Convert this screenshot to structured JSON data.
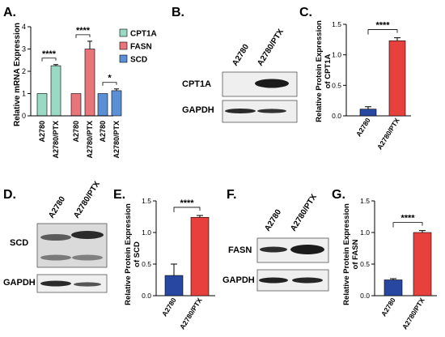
{
  "colors": {
    "green": "#9ad9c3",
    "red": "#e8757a",
    "blue": "#5b8fd6",
    "navy": "#2747a0",
    "bright_red": "#e8403c"
  },
  "panel_letters": [
    "A.",
    "B.",
    "C.",
    "D.",
    "E.",
    "F.",
    "G."
  ],
  "blots": {
    "B": {
      "lanes": [
        "A2780",
        "A2780/PTX"
      ],
      "rows": [
        "CPT1A",
        "GAPDH"
      ]
    },
    "D": {
      "lanes": [
        "A2780",
        "A2780/PTX"
      ],
      "rows": [
        "SCD",
        "GAPDH"
      ]
    },
    "F": {
      "lanes": [
        "A2780",
        "A2780/PTX"
      ],
      "rows": [
        "FASN",
        "GAPDH"
      ]
    }
  },
  "chart_data": [
    {
      "panel": "A",
      "type": "bar",
      "ylabel": "Relative mRNA Expression",
      "ylim": [
        0,
        4
      ],
      "yticks": [
        "0",
        "1",
        "2",
        "3",
        "4"
      ],
      "categories": [
        "A2780",
        "A2780/PTX"
      ],
      "series": [
        {
          "name": "CPT1A",
          "values": [
            1.0,
            2.25
          ],
          "errors": [
            0,
            0.05
          ]
        },
        {
          "name": "FASN",
          "values": [
            1.0,
            3.0
          ],
          "errors": [
            0,
            0.35
          ]
        },
        {
          "name": "SCD",
          "values": [
            1.0,
            1.13
          ],
          "errors": [
            0,
            0.08
          ]
        }
      ],
      "significance": [
        "****",
        "****",
        "*"
      ],
      "legend_position": "top-right"
    },
    {
      "panel": "C",
      "type": "bar",
      "ylabel": "Relative Protein Expression of CPT1A",
      "ylim": [
        0,
        1.5
      ],
      "yticks": [
        "0.0",
        "0.5",
        "1.0",
        "1.5"
      ],
      "categories": [
        "A2780",
        "A2780/PTX"
      ],
      "values": [
        0.11,
        1.23
      ],
      "errors": [
        0.04,
        0.05
      ],
      "significance": "****"
    },
    {
      "panel": "E",
      "type": "bar",
      "ylabel": "Relative Protein Expression of SCD",
      "ylim": [
        0,
        1.5
      ],
      "yticks": [
        "0.0",
        "0.5",
        "1.0",
        "1.5"
      ],
      "categories": [
        "A2780",
        "A2780/PTX"
      ],
      "values": [
        0.32,
        1.24
      ],
      "errors": [
        0.18,
        0.03
      ],
      "significance": "****"
    },
    {
      "panel": "G",
      "type": "bar",
      "ylabel": "Relative Protein Expression of FASN",
      "ylim": [
        0,
        1.5
      ],
      "yticks": [
        "0.0",
        "0.5",
        "1.0",
        "1.5"
      ],
      "categories": [
        "A2780",
        "A2780/PTX"
      ],
      "values": [
        0.25,
        1.0
      ],
      "errors": [
        0.02,
        0.03
      ],
      "significance": "****"
    }
  ]
}
